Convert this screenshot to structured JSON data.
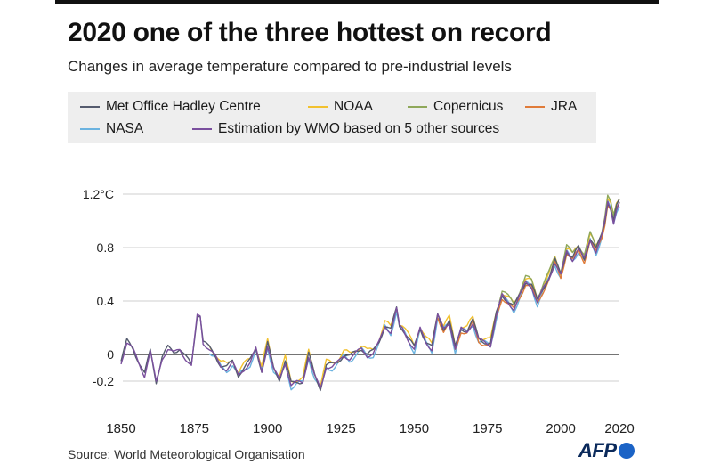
{
  "title": "2020 one of the three hottest on record",
  "subtitle": "Changes in average temperature compared to pre-industrial levels",
  "source": "Source: World Meteorological Organisation",
  "logo": "AFP",
  "chart_data": {
    "type": "line",
    "title": "2020 one of the three hottest on record",
    "subtitle": "Changes in average temperature compared to pre-industrial levels",
    "xlabel": "",
    "ylabel": "",
    "xlim": [
      1850,
      2020
    ],
    "ylim": [
      -0.27,
      1.27
    ],
    "x_ticks": [
      {
        "value": 1850,
        "label": "1850"
      },
      {
        "value": 1875,
        "label": "1875"
      },
      {
        "value": 1900,
        "label": "1900"
      },
      {
        "value": 1925,
        "label": "1925"
      },
      {
        "value": 1950,
        "label": "1950"
      },
      {
        "value": 1975,
        "label": "1975"
      },
      {
        "value": 2000,
        "label": "2000"
      },
      {
        "value": 2020,
        "label": "2020"
      }
    ],
    "y_ticks": [
      {
        "value": 1.2,
        "label": "1.2°C"
      },
      {
        "value": 0.8,
        "label": "0.8"
      },
      {
        "value": 0.4,
        "label": "0.4"
      },
      {
        "value": 0,
        "label": "0"
      },
      {
        "value": -0.2,
        "label": "-0.2"
      }
    ],
    "grid": "horizontal",
    "legend_position": "top",
    "base": {
      "x": [
        1850,
        1852,
        1854,
        1856,
        1858,
        1860,
        1862,
        1864,
        1866,
        1868,
        1870,
        1872,
        1874,
        1876,
        1877,
        1878,
        1880,
        1882,
        1884,
        1886,
        1888,
        1890,
        1892,
        1894,
        1896,
        1898,
        1900,
        1902,
        1904,
        1906,
        1908,
        1910,
        1912,
        1914,
        1916,
        1918,
        1920,
        1922,
        1924,
        1926,
        1928,
        1930,
        1932,
        1934,
        1936,
        1938,
        1940,
        1942,
        1944,
        1945,
        1946,
        1948,
        1950,
        1952,
        1954,
        1956,
        1958,
        1960,
        1962,
        1964,
        1966,
        1968,
        1970,
        1972,
        1974,
        1976,
        1978,
        1980,
        1982,
        1984,
        1986,
        1988,
        1990,
        1992,
        1994,
        1996,
        1998,
        2000,
        2002,
        2004,
        2006,
        2008,
        2010,
        2012,
        2014,
        2015,
        2016,
        2017,
        2018,
        2019,
        2020
      ],
      "y": [
        -0.05,
        0.1,
        0.05,
        -0.05,
        -0.15,
        0.03,
        -0.2,
        -0.02,
        0.05,
        0.02,
        0.05,
        -0.02,
        -0.08,
        0.3,
        0.3,
        0.1,
        0.05,
        0.0,
        -0.08,
        -0.1,
        -0.05,
        -0.15,
        -0.1,
        -0.05,
        0.05,
        -0.12,
        0.08,
        -0.1,
        -0.18,
        -0.05,
        -0.22,
        -0.2,
        -0.2,
        0.0,
        -0.15,
        -0.25,
        -0.08,
        -0.08,
        -0.05,
        0.0,
        -0.02,
        0.02,
        0.05,
        0.0,
        0.02,
        0.1,
        0.22,
        0.18,
        0.35,
        0.22,
        0.2,
        0.12,
        0.05,
        0.2,
        0.1,
        0.05,
        0.3,
        0.2,
        0.25,
        0.05,
        0.2,
        0.18,
        0.25,
        0.12,
        0.1,
        0.08,
        0.3,
        0.45,
        0.4,
        0.35,
        0.45,
        0.55,
        0.52,
        0.4,
        0.5,
        0.58,
        0.7,
        0.6,
        0.78,
        0.72,
        0.8,
        0.72,
        0.87,
        0.78,
        0.9,
        1.0,
        1.15,
        1.1,
        1.0,
        1.1,
        1.15
      ]
    },
    "series": [
      {
        "name": "Met Office Hadley Centre",
        "color": "#555b6e",
        "start": 1850,
        "offset": 0.0,
        "amplitude": 0.02,
        "phase": 0.0
      },
      {
        "name": "NOAA",
        "color": "#f2c12e",
        "start": 1880,
        "offset": 0.02,
        "amplitude": 0.025,
        "phase": 1.3
      },
      {
        "name": "Copernicus",
        "color": "#8fa85a",
        "start": 1979,
        "offset": 0.03,
        "amplitude": 0.02,
        "phase": 2.1
      },
      {
        "name": "JRA",
        "color": "#e07b39",
        "start": 1958,
        "offset": -0.02,
        "amplitude": 0.02,
        "phase": 0.7
      },
      {
        "name": "NASA",
        "color": "#6bb3e0",
        "start": 1880,
        "offset": -0.02,
        "amplitude": 0.025,
        "phase": 2.9
      },
      {
        "name": "Estimation by WMO based on 5 other sources",
        "color": "#7a4f9e",
        "start": 1850,
        "offset": -0.01,
        "amplitude": 0.015,
        "phase": 4.2
      }
    ]
  }
}
